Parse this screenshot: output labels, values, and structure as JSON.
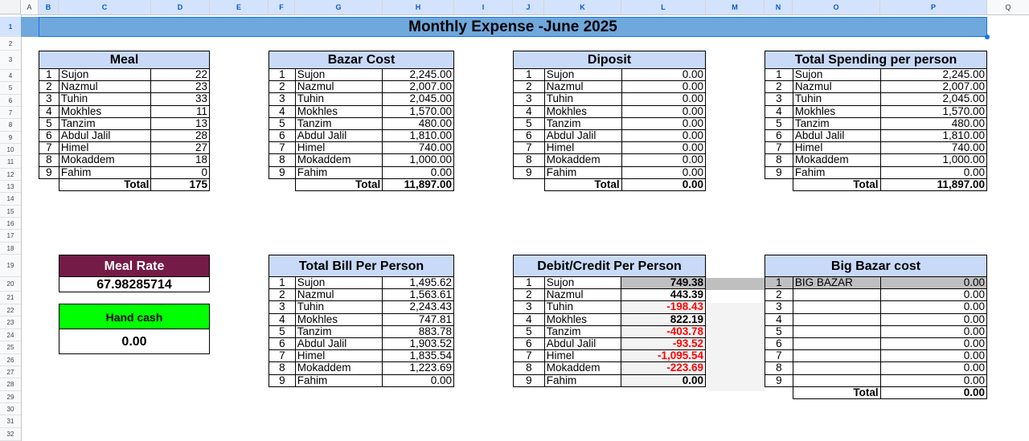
{
  "sheet": {
    "columns": [
      "A",
      "B",
      "C",
      "D",
      "E",
      "F",
      "G",
      "H",
      "I",
      "J",
      "K",
      "L",
      "M",
      "N",
      "O",
      "P",
      "Q"
    ],
    "rows": [
      "1",
      "2",
      "3",
      "4",
      "5",
      "6",
      "7",
      "8",
      "9",
      "10",
      "11",
      "12",
      "13",
      "14",
      "15",
      "16",
      "17",
      "18",
      "19",
      "20",
      "21",
      "22",
      "23",
      "24",
      "25",
      "26",
      "27",
      "28",
      "29",
      "30",
      "31",
      "32"
    ],
    "title": "Monthly Expense -June 2025"
  },
  "meal": {
    "header": "Meal",
    "rows": [
      {
        "idx": "1",
        "name": "Sujon",
        "value": "22"
      },
      {
        "idx": "2",
        "name": "Nazmul",
        "value": "23"
      },
      {
        "idx": "3",
        "name": "Tuhin",
        "value": "33"
      },
      {
        "idx": "4",
        "name": "Mokhles",
        "value": "11"
      },
      {
        "idx": "5",
        "name": "Tanzim",
        "value": "13"
      },
      {
        "idx": "6",
        "name": "Abdul Jalil",
        "value": "28"
      },
      {
        "idx": "7",
        "name": "Himel",
        "value": "27"
      },
      {
        "idx": "8",
        "name": "Mokaddem",
        "value": "18"
      },
      {
        "idx": "9",
        "name": "Fahim",
        "value": "0"
      }
    ],
    "total_label": "Total",
    "total_value": "175"
  },
  "bazar": {
    "header": "Bazar Cost",
    "rows": [
      {
        "idx": "1",
        "name": "Sujon",
        "value": "2,245.00"
      },
      {
        "idx": "2",
        "name": "Nazmul",
        "value": "2,007.00"
      },
      {
        "idx": "3",
        "name": "Tuhin",
        "value": "2,045.00"
      },
      {
        "idx": "4",
        "name": "Mokhles",
        "value": "1,570.00"
      },
      {
        "idx": "5",
        "name": "Tanzim",
        "value": "480.00"
      },
      {
        "idx": "6",
        "name": "Abdul Jalil",
        "value": "1,810.00"
      },
      {
        "idx": "7",
        "name": "Himel",
        "value": "740.00"
      },
      {
        "idx": "8",
        "name": "Mokaddem",
        "value": "1,000.00"
      },
      {
        "idx": "9",
        "name": "Fahim",
        "value": "0.00"
      }
    ],
    "total_label": "Total",
    "total_value": "11,897.00"
  },
  "deposit": {
    "header": "Diposit",
    "rows": [
      {
        "idx": "1",
        "name": "Sujon",
        "value": "0.00"
      },
      {
        "idx": "2",
        "name": "Nazmul",
        "value": "0.00"
      },
      {
        "idx": "3",
        "name": "Tuhin",
        "value": "0.00"
      },
      {
        "idx": "4",
        "name": "Mokhles",
        "value": "0.00"
      },
      {
        "idx": "5",
        "name": "Tanzim",
        "value": "0.00"
      },
      {
        "idx": "6",
        "name": "Abdul Jalil",
        "value": "0.00"
      },
      {
        "idx": "7",
        "name": "Himel",
        "value": "0.00"
      },
      {
        "idx": "8",
        "name": "Mokaddem",
        "value": "0.00"
      },
      {
        "idx": "9",
        "name": "Fahim",
        "value": "0.00"
      }
    ],
    "total_label": "Total",
    "total_value": "0.00"
  },
  "spending": {
    "header": "Total Spending per person",
    "rows": [
      {
        "idx": "1",
        "name": "Sujon",
        "value": "2,245.00"
      },
      {
        "idx": "2",
        "name": "Nazmul",
        "value": "2,007.00"
      },
      {
        "idx": "3",
        "name": "Tuhin",
        "value": "2,045.00"
      },
      {
        "idx": "4",
        "name": "Mokhles",
        "value": "1,570.00"
      },
      {
        "idx": "5",
        "name": "Tanzim",
        "value": "480.00"
      },
      {
        "idx": "6",
        "name": "Abdul Jalil",
        "value": "1,810.00"
      },
      {
        "idx": "7",
        "name": "Himel",
        "value": "740.00"
      },
      {
        "idx": "8",
        "name": "Mokaddem",
        "value": "1,000.00"
      },
      {
        "idx": "9",
        "name": "Fahim",
        "value": "0.00"
      }
    ],
    "total_label": "Total",
    "total_value": "11,897.00"
  },
  "meal_rate": {
    "label": "Meal Rate",
    "value": "67.98285714"
  },
  "hand_cash": {
    "label": "Hand cash",
    "value": "0.00"
  },
  "bill": {
    "header": "Total Bill Per Person",
    "rows": [
      {
        "idx": "1",
        "name": "Sujon",
        "value": "1,495.62"
      },
      {
        "idx": "2",
        "name": "Nazmul",
        "value": "1,563.61"
      },
      {
        "idx": "3",
        "name": "Tuhin",
        "value": "2,243.43"
      },
      {
        "idx": "4",
        "name": "Mokhles",
        "value": "747.81"
      },
      {
        "idx": "5",
        "name": "Tanzim",
        "value": "883.78"
      },
      {
        "idx": "6",
        "name": "Abdul Jalil",
        "value": "1,903.52"
      },
      {
        "idx": "7",
        "name": "Himel",
        "value": "1,835.54"
      },
      {
        "idx": "8",
        "name": "Mokaddem",
        "value": "1,223.69"
      },
      {
        "idx": "9",
        "name": "Fahim",
        "value": "0.00"
      }
    ]
  },
  "debit": {
    "header": "Debit/Credit Per Person",
    "negative_color": "#ff0000",
    "rows": [
      {
        "idx": "1",
        "name": "Sujon",
        "value": "749.38",
        "sign": "pos"
      },
      {
        "idx": "2",
        "name": "Nazmul",
        "value": "443.39",
        "sign": "pos"
      },
      {
        "idx": "3",
        "name": "Tuhin",
        "value": "-198.43",
        "sign": "neg"
      },
      {
        "idx": "4",
        "name": "Mokhles",
        "value": "822.19",
        "sign": "pos"
      },
      {
        "idx": "5",
        "name": "Tanzim",
        "value": "-403.78",
        "sign": "neg"
      },
      {
        "idx": "6",
        "name": "Abdul Jalil",
        "value": "-93.52",
        "sign": "neg"
      },
      {
        "idx": "7",
        "name": "Himel",
        "value": "-1,095.54",
        "sign": "neg"
      },
      {
        "idx": "8",
        "name": "Mokaddem",
        "value": "-223.69",
        "sign": "neg"
      },
      {
        "idx": "9",
        "name": "Fahim",
        "value": "0.00",
        "sign": "pos"
      }
    ]
  },
  "bigbazar": {
    "header": "Big Bazar cost",
    "rows": [
      {
        "idx": "1",
        "name": "BIG BAZAR",
        "value": "0.00"
      },
      {
        "idx": "2",
        "name": "",
        "value": "0.00"
      },
      {
        "idx": "3",
        "name": "",
        "value": "0.00"
      },
      {
        "idx": "4",
        "name": "",
        "value": "0.00"
      },
      {
        "idx": "5",
        "name": "",
        "value": "0.00"
      },
      {
        "idx": "6",
        "name": "",
        "value": "0.00"
      },
      {
        "idx": "7",
        "name": "",
        "value": "0.00"
      },
      {
        "idx": "8",
        "name": "",
        "value": "0.00"
      },
      {
        "idx": "9",
        "name": "",
        "value": "0.00"
      }
    ],
    "total_label": "Total",
    "total_value": "0.00"
  },
  "colors": {
    "title_bg": "#6fa8dc",
    "header_bg": "#c9daf8",
    "meal_rate_bg": "#741b47",
    "hand_cash_bg": "#00ff00"
  }
}
